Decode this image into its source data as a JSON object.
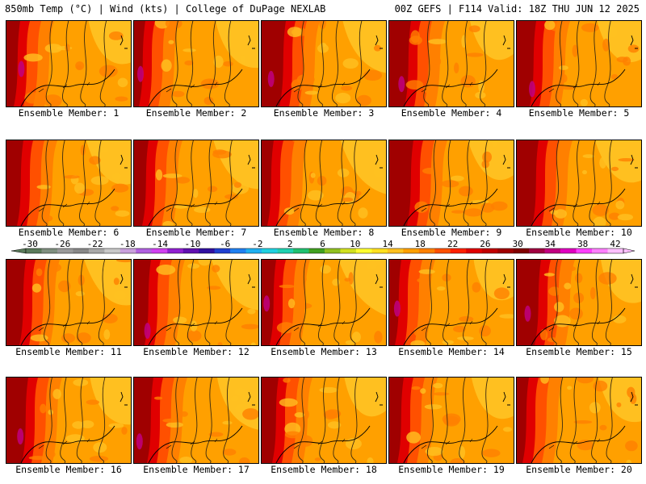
{
  "header": {
    "left": "850mb Temp (°C) | Wind (kts) | College of DuPage NEXLAB",
    "right": "00Z GEFS | F114 Valid: 18Z THU JUN 12 2025"
  },
  "members": [
    {
      "label": "Ensemble Member: 1"
    },
    {
      "label": "Ensemble Member: 2"
    },
    {
      "label": "Ensemble Member: 3"
    },
    {
      "label": "Ensemble Member: 4"
    },
    {
      "label": "Ensemble Member: 5"
    },
    {
      "label": "Ensemble Member: 6"
    },
    {
      "label": "Ensemble Member: 7"
    },
    {
      "label": "Ensemble Member: 8"
    },
    {
      "label": "Ensemble Member: 9"
    },
    {
      "label": "Ensemble Member: 10"
    },
    {
      "label": "Ensemble Member: 11"
    },
    {
      "label": "Ensemble Member: 12"
    },
    {
      "label": "Ensemble Member: 13"
    },
    {
      "label": "Ensemble Member: 14"
    },
    {
      "label": "Ensemble Member: 15"
    },
    {
      "label": "Ensemble Member: 16"
    },
    {
      "label": "Ensemble Member: 17"
    },
    {
      "label": "Ensemble Member: 18"
    },
    {
      "label": "Ensemble Member: 19"
    },
    {
      "label": "Ensemble Member: 20"
    }
  ],
  "colorbar": {
    "tick_labels": [
      "-30",
      "-26",
      "-22",
      "-18",
      "-14",
      "-10",
      "-6",
      "-2",
      "2",
      "6",
      "10",
      "14",
      "18",
      "22",
      "26",
      "30",
      "34",
      "38",
      "42"
    ],
    "colors": [
      "#5a7a5a",
      "#7f8f7f",
      "#9a9a9a",
      "#888888",
      "#a9a9a9",
      "#c8c8c8",
      "#c9a0dc",
      "#b060e0",
      "#d040f0",
      "#9020d0",
      "#6010b0",
      "#3010a0",
      "#2040d0",
      "#2080f0",
      "#20b0f0",
      "#20d0e0",
      "#20d0b0",
      "#20c070",
      "#40a020",
      "#90c020",
      "#d0e020",
      "#ffff30",
      "#ffe020",
      "#ffc020",
      "#ffa000",
      "#ff8000",
      "#ff5000",
      "#ff2000",
      "#e00000",
      "#c00000",
      "#a00000",
      "#800000",
      "#a00040",
      "#c00080",
      "#e000c0",
      "#ff40ff",
      "#ff80ff",
      "#ffc0ff"
    ]
  }
}
